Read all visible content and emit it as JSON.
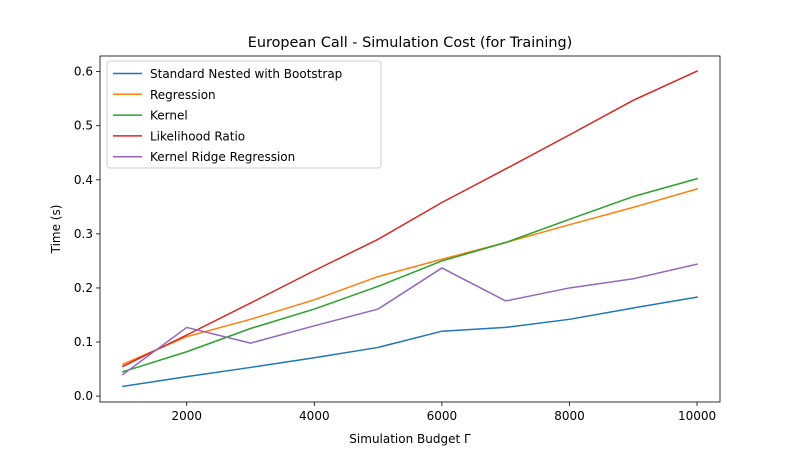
{
  "chart_data": {
    "type": "line",
    "title": "European Call - Simulation Cost (for Training)",
    "xlabel": "Simulation Budget Γ",
    "ylabel": "Time (s)",
    "xlim": [
      640,
      10360
    ],
    "ylim": [
      -0.0109,
      0.6289
    ],
    "x_ticks": [
      2000,
      4000,
      6000,
      8000,
      10000
    ],
    "y_ticks": [
      0.0,
      0.1,
      0.2,
      0.3,
      0.4,
      0.5,
      0.6
    ],
    "x_tick_labels": [
      "2000",
      "4000",
      "6000",
      "8000",
      "10000"
    ],
    "y_tick_labels": [
      "0.0",
      "0.1",
      "0.2",
      "0.3",
      "0.4",
      "0.5",
      "0.6"
    ],
    "grid": false,
    "legend_position": "upper-left",
    "x": [
      1000,
      2000,
      3000,
      4000,
      5000,
      6000,
      7000,
      8000,
      9000,
      10000
    ],
    "series": [
      {
        "name": "Standard Nested with Bootstrap",
        "color": "#1f77b4",
        "values": [
          0.018,
          0.036,
          0.053,
          0.071,
          0.09,
          0.12,
          0.127,
          0.142,
          0.163,
          0.183
        ]
      },
      {
        "name": "Regression",
        "color": "#ff7f0e",
        "values": [
          0.059,
          0.11,
          0.142,
          0.178,
          0.221,
          0.253,
          0.284,
          0.317,
          0.349,
          0.383
        ]
      },
      {
        "name": "Kernel",
        "color": "#2ca02c",
        "values": [
          0.045,
          0.082,
          0.125,
          0.161,
          0.203,
          0.25,
          0.284,
          0.327,
          0.369,
          0.402
        ]
      },
      {
        "name": "Likelihood Ratio",
        "color": "#d62728",
        "values": [
          0.055,
          0.113,
          0.172,
          0.232,
          0.29,
          0.358,
          0.42,
          0.483,
          0.547,
          0.601
        ]
      },
      {
        "name": "Kernel Ridge Regression",
        "color": "#9467bd",
        "values": [
          0.04,
          0.127,
          0.098,
          0.13,
          0.161,
          0.237,
          0.176,
          0.2,
          0.217,
          0.244
        ]
      }
    ]
  }
}
